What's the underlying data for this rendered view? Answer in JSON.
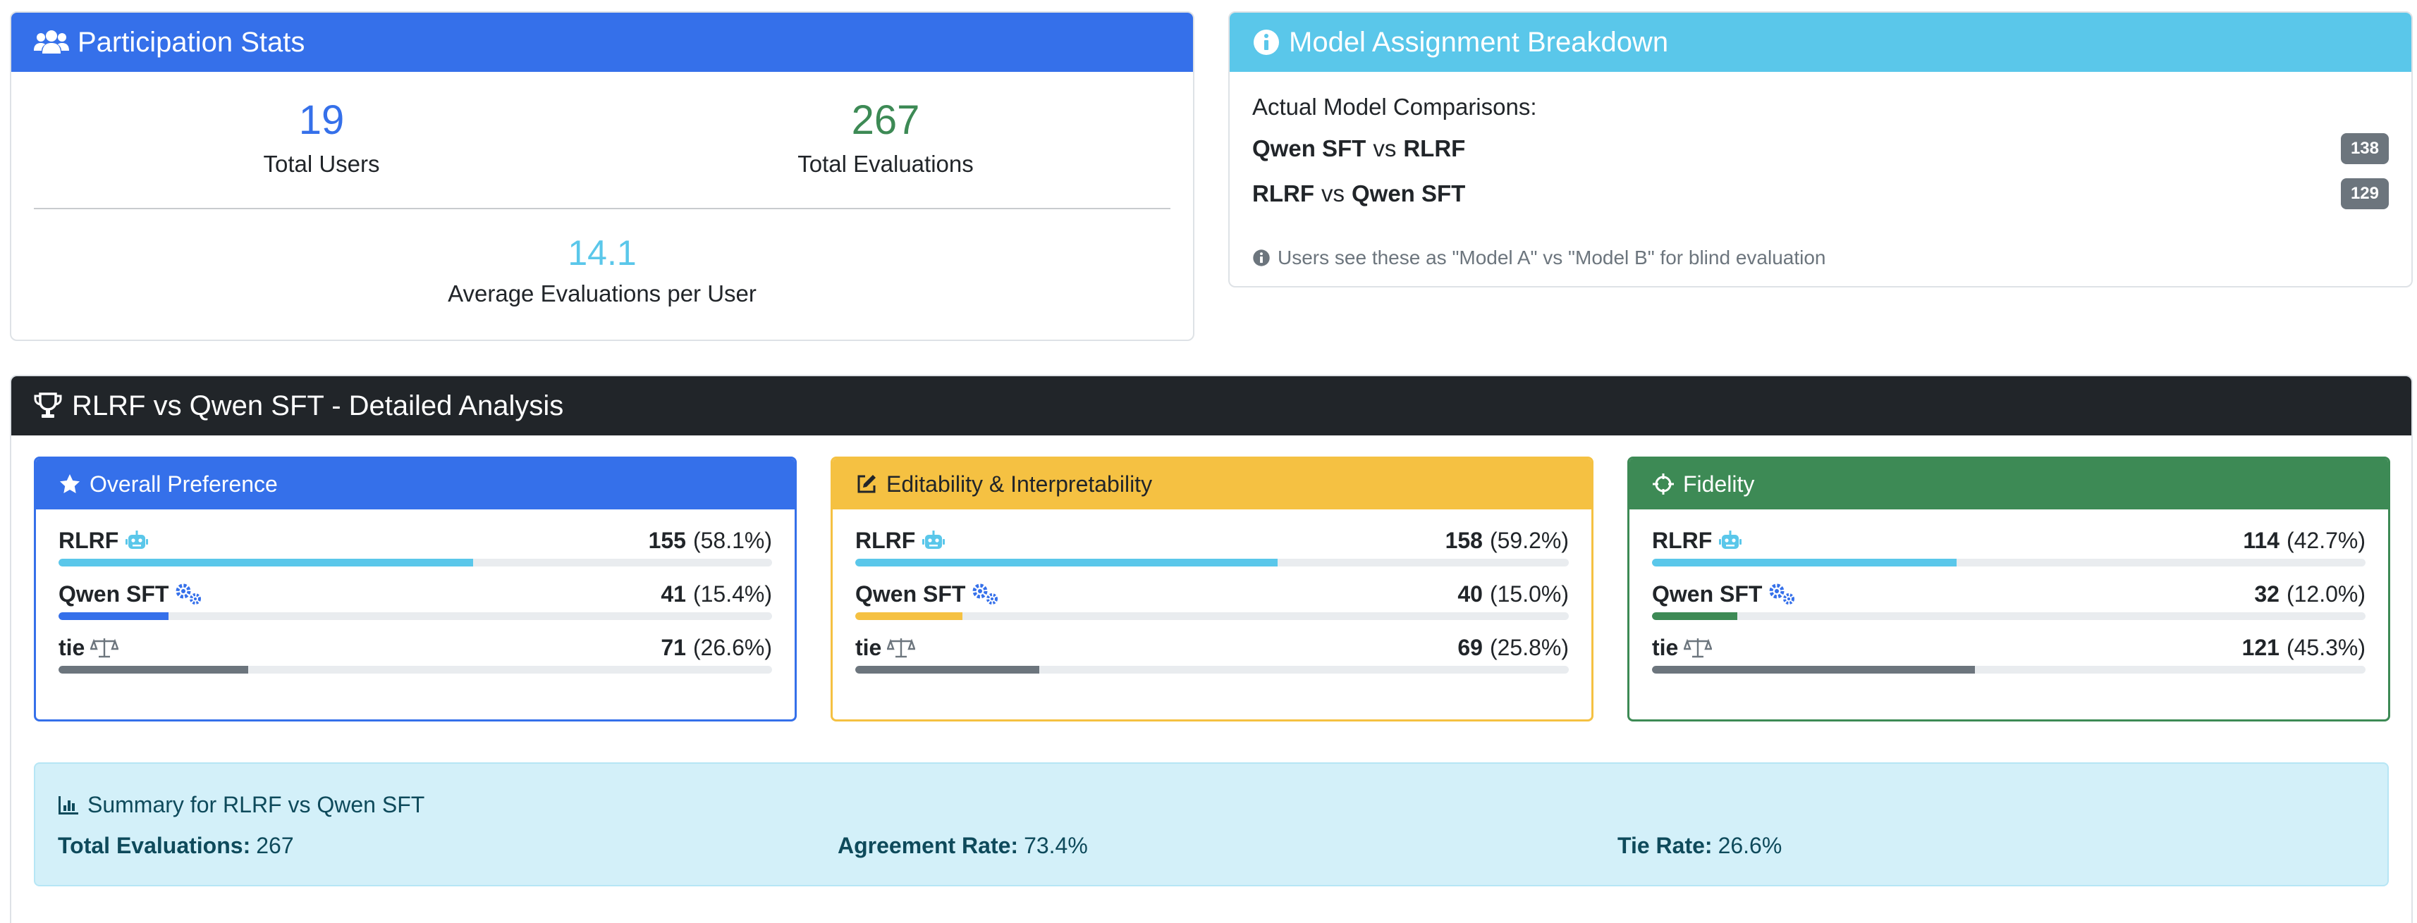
{
  "participation": {
    "title": "Participation Stats",
    "header_icon": "users-icon",
    "total_users": "19",
    "total_users_label": "Total Users",
    "total_evaluations": "267",
    "total_evaluations_label": "Total Evaluations",
    "avg_evaluations": "14.1",
    "avg_evaluations_label": "Average Evaluations per User",
    "colors": {
      "header": "#3570ea",
      "users": "#3570ea",
      "evaluations": "#3d8a55",
      "avg": "#5ac7ea"
    }
  },
  "assignment": {
    "title": "Model Assignment Breakdown",
    "header_icon": "info-circle-icon",
    "subtitle": "Actual Model Comparisons:",
    "vs_word": "vs",
    "rows": [
      {
        "model_a": "Qwen SFT",
        "model_b": "RLRF",
        "count": "138"
      },
      {
        "model_a": "RLRF",
        "model_b": "Qwen SFT",
        "count": "129"
      }
    ],
    "note": "Users see these as \"Model A\" vs \"Model B\" for blind evaluation",
    "colors": {
      "header": "#5ac7ea",
      "badge": "#6c757d"
    }
  },
  "detailed": {
    "title": "RLRF vs Qwen SFT - Detailed Analysis",
    "header_icon": "trophy-icon",
    "metrics": [
      {
        "title": "Overall Preference",
        "icon": "star-icon",
        "color": "#3570ea",
        "text_color": "#ffffff",
        "options": [
          {
            "name": "RLRF",
            "icon": "robot-icon",
            "count": "155",
            "pct": "(58.1%)",
            "fraction": 0.581,
            "bar_color": "#5ac7ea"
          },
          {
            "name": "Qwen SFT",
            "icon": "cogs-icon",
            "count": "41",
            "pct": "(15.4%)",
            "fraction": 0.154,
            "bar_color": "#3570ea"
          },
          {
            "name": "tie",
            "icon": "balance-scale-icon",
            "count": "71",
            "pct": "(26.6%)",
            "fraction": 0.266,
            "bar_color": "#6c757d"
          }
        ]
      },
      {
        "title": "Editability & Interpretability",
        "icon": "edit-icon",
        "color": "#f5c142",
        "text_color": "#212529",
        "options": [
          {
            "name": "RLRF",
            "icon": "robot-icon",
            "count": "158",
            "pct": "(59.2%)",
            "fraction": 0.592,
            "bar_color": "#5ac7ea"
          },
          {
            "name": "Qwen SFT",
            "icon": "cogs-icon",
            "count": "40",
            "pct": "(15.0%)",
            "fraction": 0.15,
            "bar_color": "#f5c142"
          },
          {
            "name": "tie",
            "icon": "balance-scale-icon",
            "count": "69",
            "pct": "(25.8%)",
            "fraction": 0.258,
            "bar_color": "#6c757d"
          }
        ]
      },
      {
        "title": "Fidelity",
        "icon": "crosshairs-icon",
        "color": "#3d8a55",
        "text_color": "#ffffff",
        "options": [
          {
            "name": "RLRF",
            "icon": "robot-icon",
            "count": "114",
            "pct": "(42.7%)",
            "fraction": 0.427,
            "bar_color": "#5ac7ea"
          },
          {
            "name": "Qwen SFT",
            "icon": "cogs-icon",
            "count": "32",
            "pct": "(12.0%)",
            "fraction": 0.12,
            "bar_color": "#3d8a55"
          },
          {
            "name": "tie",
            "icon": "balance-scale-icon",
            "count": "121",
            "pct": "(45.3%)",
            "fraction": 0.453,
            "bar_color": "#6c757d"
          }
        ]
      }
    ],
    "summary": {
      "title": "Summary for RLRF vs Qwen SFT",
      "icon": "chart-bar-icon",
      "total_label": "Total Evaluations:",
      "total_value": "267",
      "agreement_label": "Agreement Rate:",
      "agreement_value": "73.4%",
      "tie_label": "Tie Rate:",
      "tie_value": "26.6%"
    },
    "colors": {
      "header": "#212529",
      "icon_blue": "#3570ea"
    }
  }
}
